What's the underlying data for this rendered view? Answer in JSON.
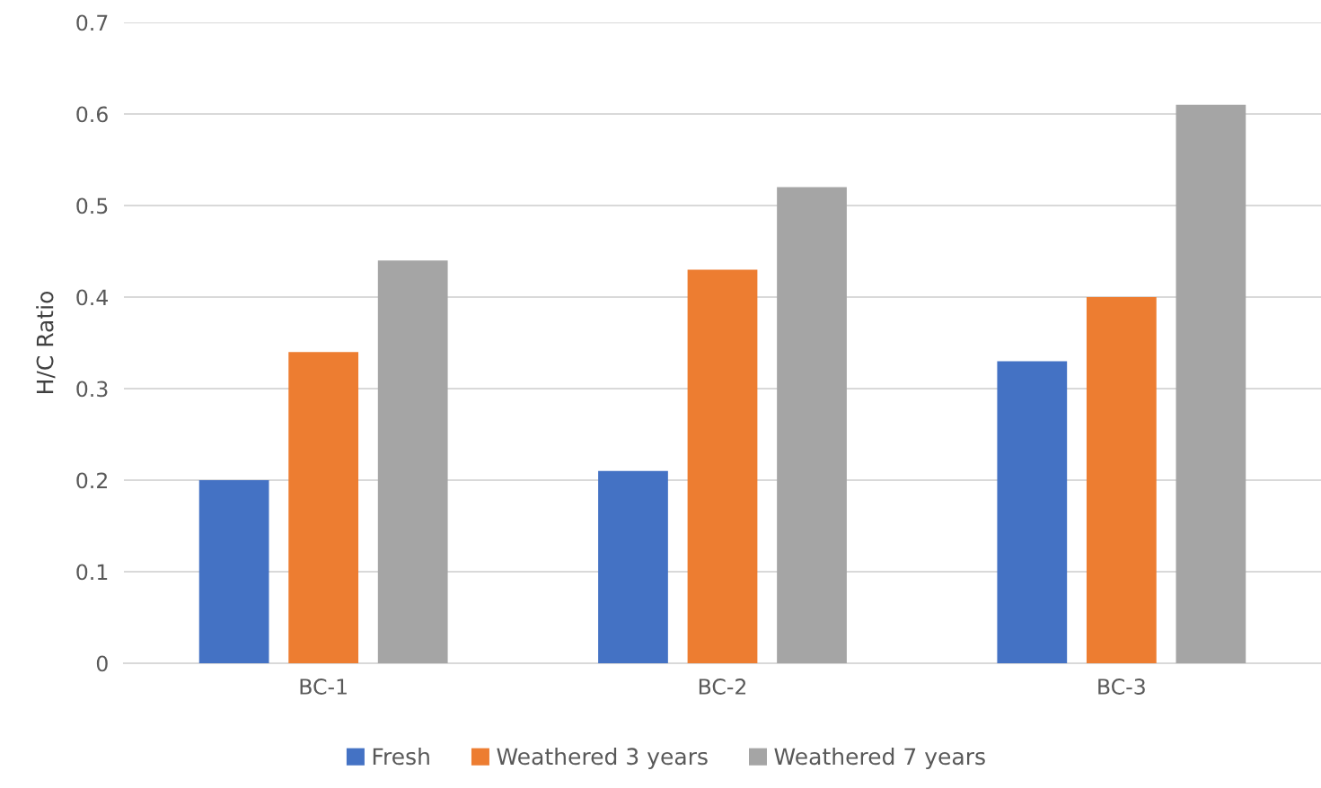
{
  "chart_data": {
    "type": "bar",
    "ylabel": "H/C Ratio",
    "categories": [
      "BC-1",
      "BC-2",
      "BC-3"
    ],
    "series": [
      {
        "name": "Fresh",
        "color": "#4472c4",
        "values": [
          0.2,
          0.21,
          0.33
        ]
      },
      {
        "name": "Weathered 3 years",
        "color": "#ed7d31",
        "values": [
          0.34,
          0.43,
          0.4
        ]
      },
      {
        "name": "Weathered 7 years",
        "color": "#a5a5a5",
        "values": [
          0.44,
          0.52,
          0.61
        ]
      }
    ],
    "ylim": [
      0,
      0.7
    ],
    "yticks": [
      {
        "value": 0,
        "label": "0"
      },
      0.1,
      0.2,
      0.3,
      0.4,
      0.5,
      0.6,
      0.7
    ],
    "grid": "y",
    "legend": "bottom"
  }
}
